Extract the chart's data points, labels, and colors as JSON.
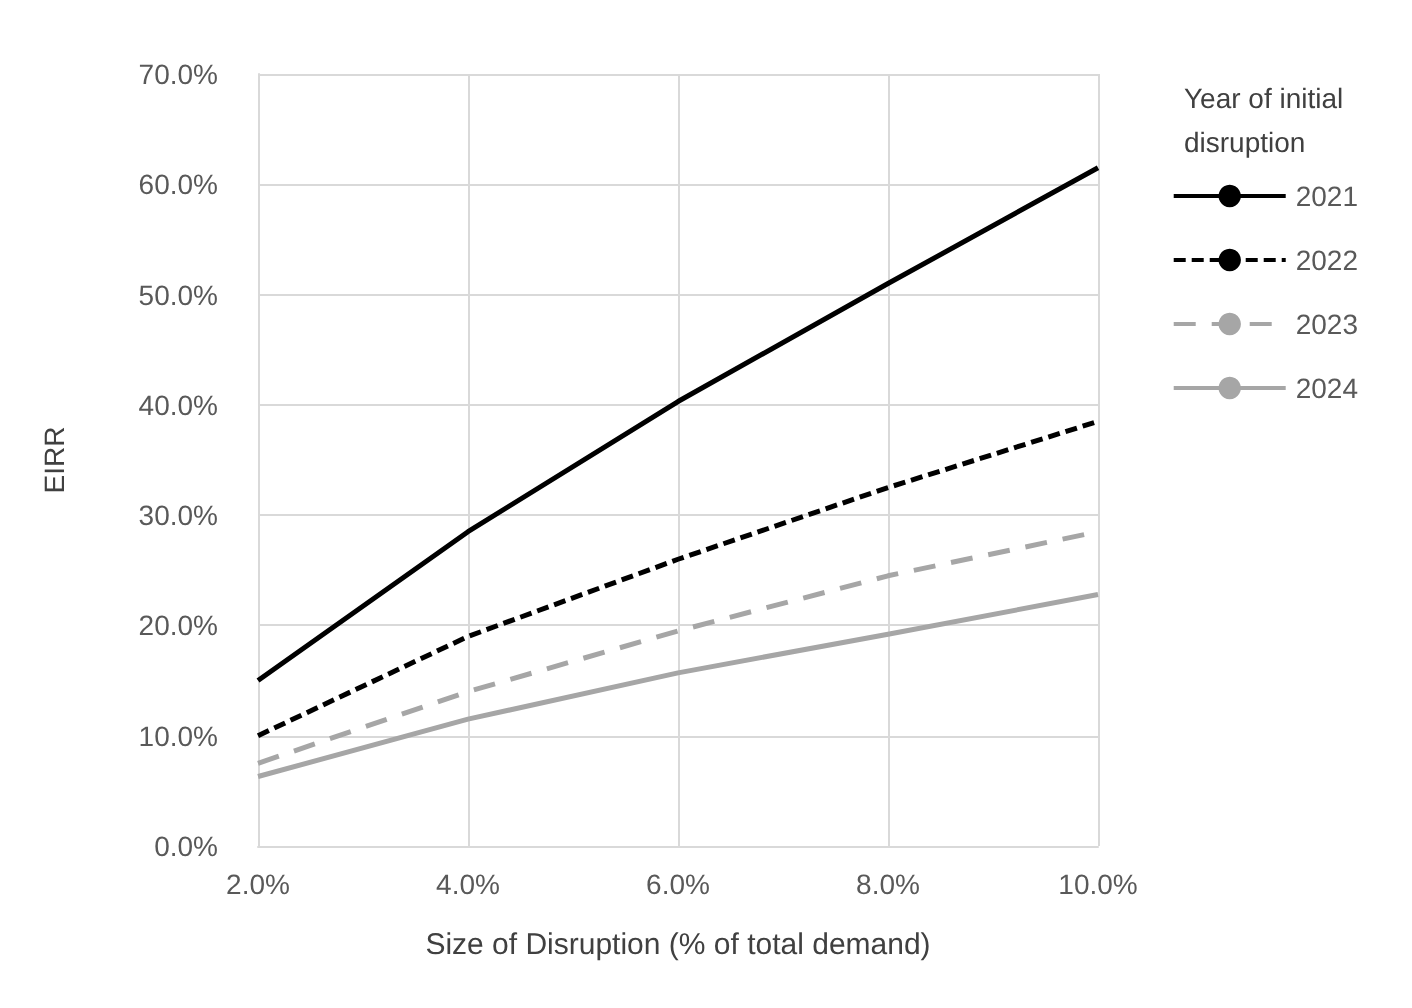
{
  "chart_data": {
    "type": "line",
    "xlabel": "Size of Disruption (% of total demand)",
    "ylabel": "EIRR",
    "legend_title": "Year of initial disruption",
    "x": [
      2,
      4,
      6,
      8,
      10
    ],
    "xlim": [
      2,
      10
    ],
    "xticks": [
      {
        "value": 2,
        "label": "2.0%"
      },
      {
        "value": 4,
        "label": "4.0%"
      },
      {
        "value": 6,
        "label": "6.0%"
      },
      {
        "value": 8,
        "label": "8.0%"
      },
      {
        "value": 10,
        "label": "10.0%"
      }
    ],
    "ylim": [
      0,
      70
    ],
    "yticks": [
      {
        "value": 0,
        "label": "0.0%"
      },
      {
        "value": 10,
        "label": "10.0%"
      },
      {
        "value": 20,
        "label": "20.0%"
      },
      {
        "value": 30,
        "label": "30.0%"
      },
      {
        "value": 40,
        "label": "40.0%"
      },
      {
        "value": 50,
        "label": "50.0%"
      },
      {
        "value": 60,
        "label": "60.0%"
      },
      {
        "value": 70,
        "label": "70.0%"
      }
    ],
    "grid": true,
    "legend": "right",
    "marker": "none",
    "series": [
      {
        "name": "2021",
        "color": "#000000",
        "line_style": "solid",
        "values": [
          15,
          28.5,
          40.3,
          51,
          61.5
        ]
      },
      {
        "name": "2022",
        "color": "#000000",
        "line_style": "dashed",
        "values": [
          10,
          19,
          26,
          32.5,
          38.5
        ]
      },
      {
        "name": "2023",
        "color": "#a6a6a6",
        "line_style": "dashed",
        "values": [
          7.5,
          14,
          19.5,
          24.5,
          28.5
        ]
      },
      {
        "name": "2024",
        "color": "#a6a6a6",
        "line_style": "solid",
        "values": [
          6.3,
          11.5,
          15.7,
          19.2,
          22.8
        ]
      }
    ]
  }
}
